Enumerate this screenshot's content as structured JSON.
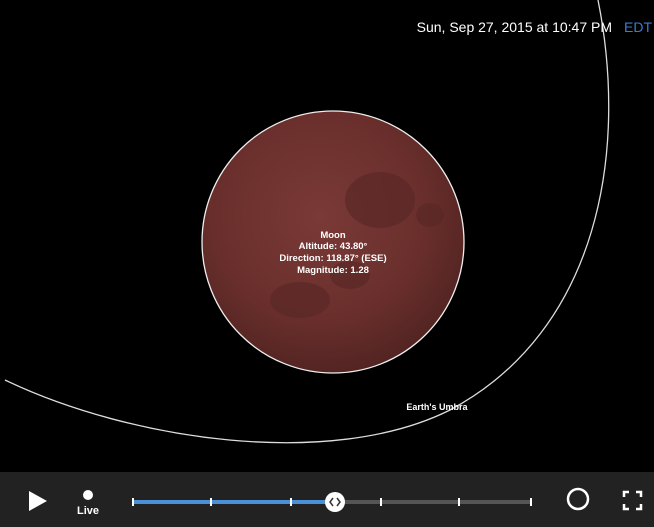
{
  "timestamp": {
    "date_time": "Sun, Sep 27, 2015 at 10:47 PM",
    "zone": "EDT"
  },
  "moon": {
    "name": "Moon",
    "altitude": "Altitude: 43.80°",
    "direction": "Direction: 118.87° (ESE)",
    "magnitude": "Magnitude: 1.28"
  },
  "umbra_label": "Earth's Umbra",
  "controls": {
    "live": "Live"
  }
}
